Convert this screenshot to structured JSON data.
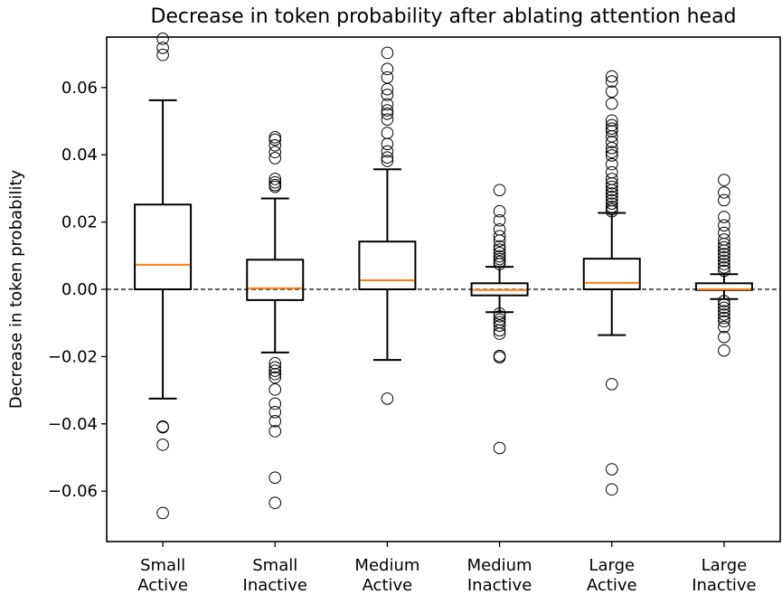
{
  "chart_data": {
    "type": "boxplot",
    "title": "Decrease in token probability after ablating attention head",
    "xlabel": "",
    "ylabel": "Decrease in token probability",
    "ylim": [
      -0.075,
      0.075
    ],
    "yticks": [
      -0.06,
      -0.04,
      -0.02,
      0.0,
      0.02,
      0.04,
      0.06
    ],
    "ytick_labels": [
      "−0.06",
      "−0.04",
      "−0.02",
      "0.00",
      "0.02",
      "0.04",
      "0.06"
    ],
    "reference_line": {
      "y": 0.0,
      "style": "dashed"
    },
    "categories": [
      {
        "line1": "Small",
        "line2": "Active"
      },
      {
        "line1": "Small",
        "line2": "Inactive"
      },
      {
        "line1": "Medium",
        "line2": "Active"
      },
      {
        "line1": "Medium",
        "line2": "Inactive"
      },
      {
        "line1": "Large",
        "line2": "Active"
      },
      {
        "line1": "Large",
        "line2": "Inactive"
      }
    ],
    "boxes": [
      {
        "whisker_low": -0.0325,
        "q1": 0.0,
        "median": 0.0073,
        "q3": 0.0252,
        "whisker_high": 0.0562,
        "outliers": [
          0.0745,
          0.0718,
          0.0697,
          -0.0408,
          -0.041,
          -0.0462,
          -0.0665
        ]
      },
      {
        "whisker_low": -0.0188,
        "q1": -0.0032,
        "median": 0.0003,
        "q3": 0.0088,
        "whisker_high": 0.027,
        "outliers": [
          0.0452,
          0.0445,
          0.0428,
          0.0408,
          0.039,
          0.0328,
          0.0318,
          0.031,
          0.0305,
          -0.022,
          -0.0232,
          -0.0242,
          -0.0252,
          -0.0262,
          -0.0298,
          -0.034,
          -0.0365,
          -0.0392,
          -0.0422,
          -0.056,
          -0.0635
        ]
      },
      {
        "whisker_low": -0.021,
        "q1": 0.0,
        "median": 0.0027,
        "q3": 0.0142,
        "whisker_high": 0.0357,
        "outliers": [
          0.0703,
          0.0655,
          0.063,
          0.0595,
          0.0578,
          0.055,
          0.0532,
          0.0522,
          0.0505,
          0.0465,
          0.0432,
          0.041,
          0.0392,
          0.0382,
          -0.0325
        ]
      },
      {
        "whisker_low": -0.0068,
        "q1": -0.0018,
        "median": -0.0002,
        "q3": 0.0018,
        "whisker_high": 0.0067,
        "outliers": [
          0.0295,
          0.0232,
          0.0205,
          0.0178,
          0.0158,
          0.0145,
          0.0128,
          0.0118,
          0.0108,
          0.0098,
          0.009,
          0.0082,
          0.0075,
          -0.0072,
          -0.008,
          -0.009,
          -0.0098,
          -0.0108,
          -0.0122,
          -0.0132,
          -0.0198,
          -0.0202,
          -0.0472
        ]
      },
      {
        "whisker_low": -0.0136,
        "q1": 0.0,
        "median": 0.0019,
        "q3": 0.0091,
        "whisker_high": 0.0227,
        "outliers": [
          0.0633,
          0.0618,
          0.0588,
          0.0552,
          0.0502,
          0.0488,
          0.0478,
          0.047,
          0.0455,
          0.0438,
          0.042,
          0.0408,
          0.0398,
          0.0372,
          0.0348,
          0.0328,
          0.0315,
          0.0305,
          0.0295,
          0.0285,
          0.0275,
          0.0265,
          0.0255,
          0.0245,
          0.0238,
          0.0232,
          -0.0282,
          -0.0535,
          -0.0595
        ]
      },
      {
        "whisker_low": -0.0029,
        "q1": -0.0002,
        "median": 0.0,
        "q3": 0.0018,
        "whisker_high": 0.0045,
        "outliers": [
          0.0325,
          0.0288,
          0.0265,
          0.0215,
          0.019,
          0.0168,
          0.0148,
          0.0135,
          0.0125,
          0.0115,
          0.0105,
          0.0095,
          0.0085,
          0.0075,
          0.0065,
          0.0055,
          -0.0035,
          -0.0045,
          -0.0055,
          -0.0065,
          -0.0075,
          -0.0085,
          -0.0095,
          -0.0112,
          -0.0142,
          -0.0182
        ]
      }
    ],
    "colors": {
      "box": "#000000",
      "median": "#ff7f0e",
      "outlier": "#000000",
      "reference": "#000000"
    },
    "grid": false
  }
}
